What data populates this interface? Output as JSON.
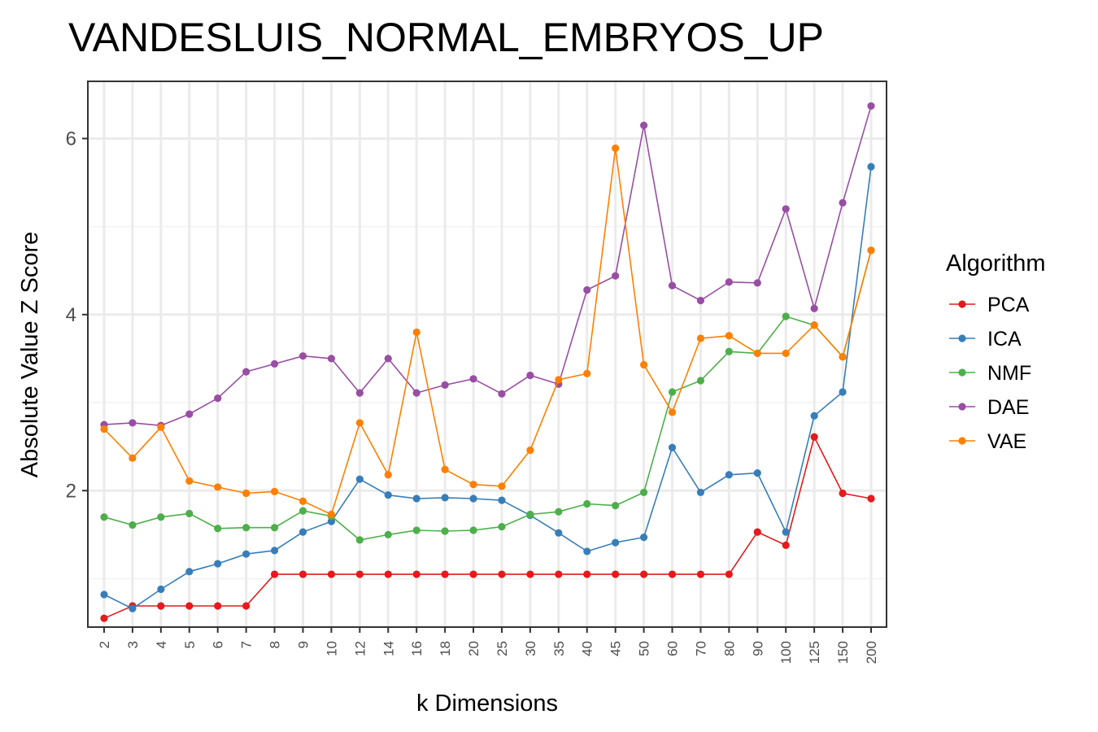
{
  "chart_data": {
    "type": "line",
    "title": "VANDESLUIS_NORMAL_EMBRYOS_UP",
    "xlabel": "k Dimensions",
    "ylabel": "Absolute Value Z Score",
    "categories": [
      "2",
      "3",
      "4",
      "5",
      "6",
      "7",
      "8",
      "9",
      "10",
      "12",
      "14",
      "16",
      "18",
      "20",
      "25",
      "30",
      "35",
      "40",
      "45",
      "50",
      "60",
      "70",
      "80",
      "90",
      "100",
      "125",
      "150",
      "200"
    ],
    "ylim": [
      0.45,
      6.65
    ],
    "yticks": [
      2,
      4,
      6
    ],
    "grid": true,
    "legend_title": "Algorithm",
    "legend_position": "right",
    "series": [
      {
        "name": "PCA",
        "color": "#e41a1c",
        "values": [
          0.55,
          0.69,
          0.69,
          0.69,
          0.69,
          0.69,
          1.05,
          1.05,
          1.05,
          1.05,
          1.05,
          1.05,
          1.05,
          1.05,
          1.05,
          1.05,
          1.05,
          1.05,
          1.05,
          1.05,
          1.05,
          1.05,
          1.05,
          1.53,
          1.38,
          2.61,
          1.97,
          1.91
        ]
      },
      {
        "name": "ICA",
        "color": "#377eb8",
        "values": [
          0.82,
          0.66,
          0.88,
          1.08,
          1.17,
          1.28,
          1.32,
          1.53,
          1.65,
          2.13,
          1.95,
          1.91,
          1.92,
          1.91,
          1.89,
          1.72,
          1.52,
          1.31,
          1.41,
          1.47,
          2.49,
          1.98,
          2.18,
          2.2,
          1.53,
          2.85,
          3.12,
          5.68
        ]
      },
      {
        "name": "NMF",
        "color": "#4daf4a",
        "values": [
          1.7,
          1.61,
          1.7,
          1.74,
          1.57,
          1.58,
          1.58,
          1.77,
          1.71,
          1.44,
          1.5,
          1.55,
          1.54,
          1.55,
          1.59,
          1.73,
          1.76,
          1.85,
          1.83,
          1.98,
          3.12,
          3.25,
          3.58,
          3.56,
          3.98,
          3.88,
          3.52,
          4.73
        ]
      },
      {
        "name": "DAE",
        "color": "#984ea3",
        "values": [
          2.75,
          2.77,
          2.74,
          2.87,
          3.05,
          3.35,
          3.44,
          3.53,
          3.5,
          3.11,
          3.5,
          3.11,
          3.2,
          3.27,
          3.1,
          3.31,
          3.21,
          4.28,
          4.44,
          6.15,
          4.33,
          4.16,
          4.37,
          4.36,
          5.2,
          4.07,
          5.27,
          6.37
        ]
      },
      {
        "name": "VAE",
        "color": "#ff7f00",
        "values": [
          2.7,
          2.37,
          2.72,
          2.11,
          2.04,
          1.97,
          1.99,
          1.88,
          1.73,
          2.77,
          2.18,
          3.8,
          2.24,
          2.07,
          2.05,
          2.46,
          3.26,
          3.33,
          5.89,
          3.43,
          2.89,
          3.73,
          3.76,
          3.56,
          3.56,
          3.88,
          3.52,
          4.73
        ]
      }
    ]
  }
}
